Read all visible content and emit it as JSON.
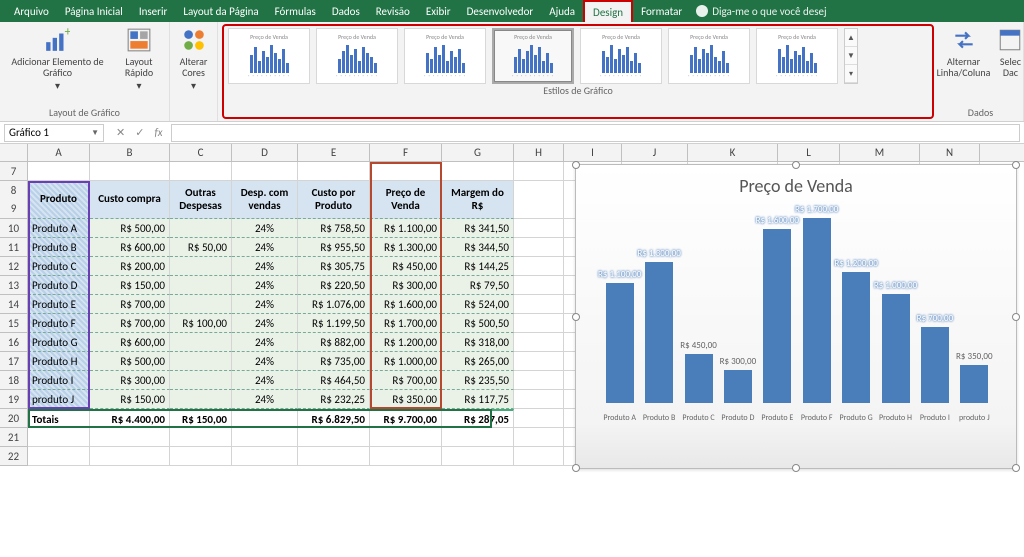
{
  "menu": {
    "items": [
      "Arquivo",
      "Página Inicial",
      "Inserir",
      "Layout da Página",
      "Fórmulas",
      "Dados",
      "Revisão",
      "Exibir",
      "Desenvolvedor",
      "Ajuda",
      "Design",
      "Formatar"
    ],
    "active": "Design",
    "tell_me": "Diga-me o que você desej"
  },
  "ribbon": {
    "group_layout": "Layout de Gráfico",
    "add_element": "Adicionar Elemento de Gráfico",
    "quick_layout": "Layout Rápido",
    "change_colors": "Alterar Cores",
    "styles_label": "Estilos de Gráfico",
    "style_title": "Preço de Venda",
    "group_data": "Dados",
    "switch_rc": "Alternar Linha/Coluna",
    "select_data": "Selec Dac"
  },
  "namebox": "Gráfico 1",
  "fx_label": "fx",
  "columns": [
    "A",
    "B",
    "C",
    "D",
    "E",
    "F",
    "G",
    "H",
    "I",
    "J",
    "K",
    "L",
    "M",
    "N"
  ],
  "col_widths": [
    "wA",
    "wB",
    "wC",
    "wD",
    "wE",
    "wF",
    "wG",
    "wH",
    "wI",
    "wJ",
    "wK",
    "wL",
    "wM",
    "wN"
  ],
  "first_row": 7,
  "headers": {
    "A": "Produto",
    "B": "Custo compra",
    "C": "Outras Despesas",
    "D": "Desp. com vendas",
    "E": "Custo por Produto",
    "F": "Preço de Venda",
    "G": "Margem do R$"
  },
  "rows": [
    {
      "n": 10,
      "A": "Produto A",
      "B": "R$ 500,00",
      "C": "",
      "D": "24%",
      "E": "R$ 758,50",
      "F": "R$ 1.100,00",
      "G": "R$ 341,50"
    },
    {
      "n": 11,
      "A": "Produto B",
      "B": "R$ 600,00",
      "C": "R$ 50,00",
      "D": "24%",
      "E": "R$ 955,50",
      "F": "R$ 1.300,00",
      "G": "R$ 344,50"
    },
    {
      "n": 12,
      "A": "Produto C",
      "B": "R$ 200,00",
      "C": "",
      "D": "24%",
      "E": "R$ 305,75",
      "F": "R$ 450,00",
      "G": "R$ 144,25"
    },
    {
      "n": 13,
      "A": "Produto D",
      "B": "R$ 150,00",
      "C": "",
      "D": "24%",
      "E": "R$ 220,50",
      "F": "R$ 300,00",
      "G": "R$ 79,50"
    },
    {
      "n": 14,
      "A": "Produto E",
      "B": "R$ 700,00",
      "C": "",
      "D": "24%",
      "E": "R$ 1.076,00",
      "F": "R$ 1.600,00",
      "G": "R$ 524,00"
    },
    {
      "n": 15,
      "A": "Produto F",
      "B": "R$ 700,00",
      "C": "R$ 100,00",
      "D": "24%",
      "E": "R$ 1.199,50",
      "F": "R$ 1.700,00",
      "G": "R$ 500,50"
    },
    {
      "n": 16,
      "A": "Produto G",
      "B": "R$ 600,00",
      "C": "",
      "D": "24%",
      "E": "R$ 882,00",
      "F": "R$ 1.200,00",
      "G": "R$ 318,00"
    },
    {
      "n": 17,
      "A": "Produto H",
      "B": "R$ 500,00",
      "C": "",
      "D": "24%",
      "E": "R$ 735,00",
      "F": "R$ 1.000,00",
      "G": "R$ 265,00"
    },
    {
      "n": 18,
      "A": "Produto I",
      "B": "R$ 300,00",
      "C": "",
      "D": "24%",
      "E": "R$ 464,50",
      "F": "R$ 700,00",
      "G": "R$ 235,50"
    },
    {
      "n": 19,
      "A": "produto J",
      "B": "R$ 150,00",
      "C": "",
      "D": "24%",
      "E": "R$ 232,25",
      "F": "R$ 350,00",
      "G": "R$ 117,75"
    }
  ],
  "totals": {
    "n": 20,
    "A": "Totais",
    "B": "R$ 4.400,00",
    "C": "R$ 150,00",
    "D": "",
    "E": "R$ 6.829,50",
    "F": "R$ 9.700,00",
    "G": "R$ 287,05"
  },
  "empty_rows": [
    21,
    22
  ],
  "chart": {
    "title": "Preço de Venda",
    "bar_color": "#4a7ebb",
    "ymax": 1700,
    "categories": [
      "Produto A",
      "Produto B",
      "Produto C",
      "Produto D",
      "Produto E",
      "Produto F",
      "Produto G",
      "Produto H",
      "Produto I",
      "produto J"
    ],
    "values": [
      1100,
      1300,
      450,
      300,
      1600,
      1700,
      1200,
      1000,
      700,
      350
    ],
    "labels": [
      "R$ 1.100,00",
      "R$ 1.300,00",
      "R$ 450,00",
      "R$ 300,00",
      "R$ 1.600,00",
      "R$ 1.700,00",
      "R$ 1.200,00",
      "R$ 1.000,00",
      "R$ 700,00",
      "R$ 350,00"
    ]
  }
}
